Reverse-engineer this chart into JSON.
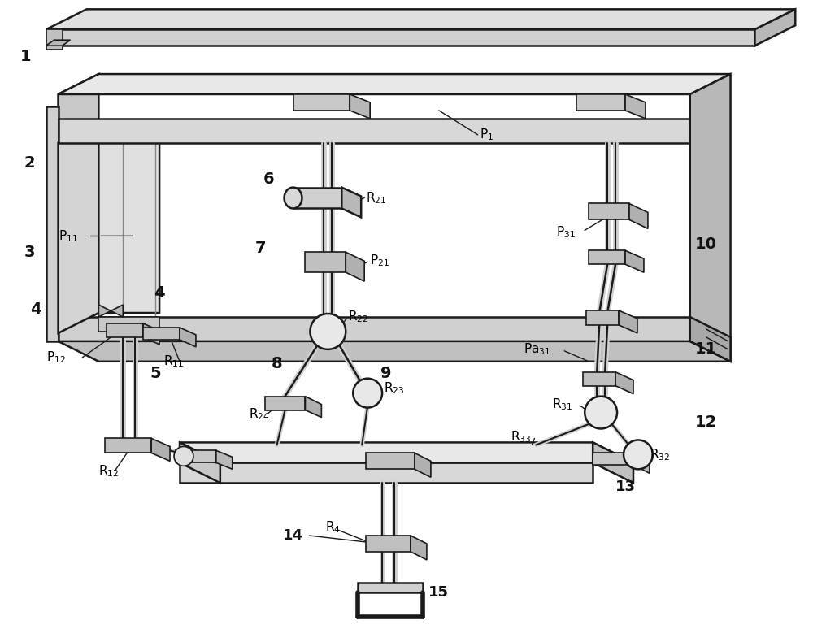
{
  "bg_color": "#ffffff",
  "lc": "#1a1a1a",
  "figsize": [
    10.0,
    7.74
  ],
  "dpi": 100,
  "xlim": [
    0,
    1000
  ],
  "ylim": [
    0,
    774
  ]
}
